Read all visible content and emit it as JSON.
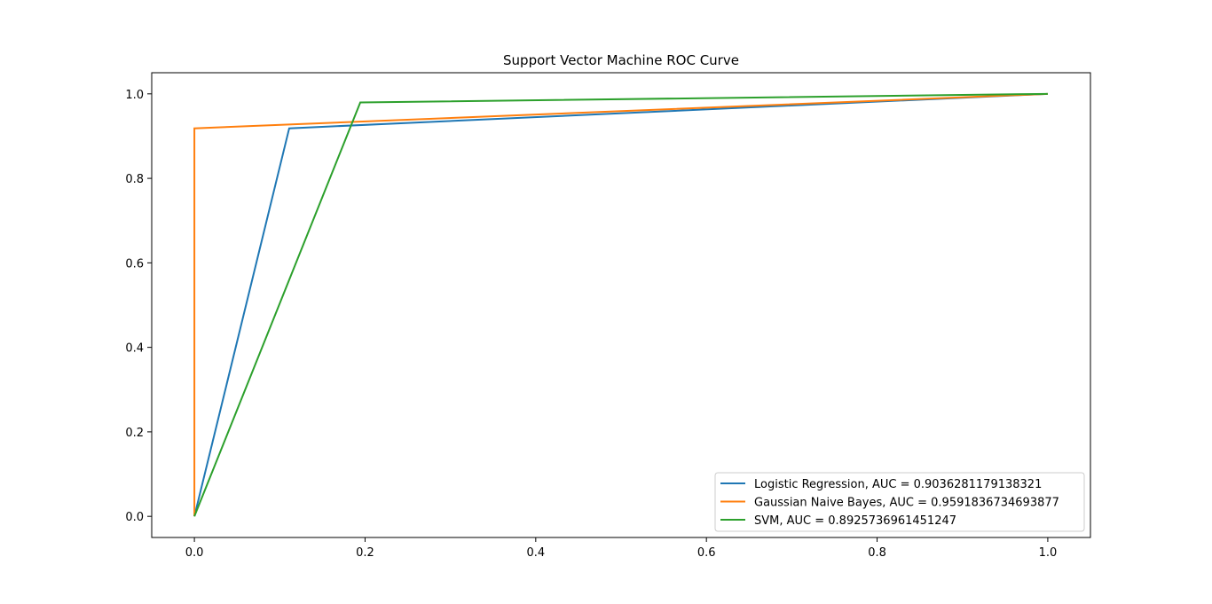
{
  "chart_data": {
    "type": "line",
    "title": "Support Vector Machine ROC Curve",
    "xlabel": "",
    "ylabel": "",
    "xlim": [
      -0.05,
      1.05
    ],
    "ylim": [
      -0.05,
      1.05
    ],
    "xticks": [
      0.0,
      0.2,
      0.4,
      0.6,
      0.8,
      1.0
    ],
    "yticks": [
      0.0,
      0.2,
      0.4,
      0.6,
      0.8,
      1.0
    ],
    "xtick_labels": [
      "0.0",
      "0.2",
      "0.4",
      "0.6",
      "0.8",
      "1.0"
    ],
    "ytick_labels": [
      "0.0",
      "0.2",
      "0.4",
      "0.6",
      "0.8",
      "1.0"
    ],
    "grid": false,
    "legend_position": "lower-right",
    "series": [
      {
        "name": "Logistic Regression, AUC = 0.9036281179138321",
        "color": "#1f77b4",
        "x": [
          0.0,
          0.1111,
          1.0
        ],
        "y": [
          0.0,
          0.9184,
          1.0
        ]
      },
      {
        "name": "Gaussian Naive Bayes, AUC = 0.9591836734693877",
        "color": "#ff7f0e",
        "x": [
          0.0,
          0.0,
          1.0
        ],
        "y": [
          0.0,
          0.9184,
          1.0
        ]
      },
      {
        "name": "SVM, AUC = 0.8925736961451247",
        "color": "#2ca02c",
        "x": [
          0.0,
          0.1944,
          1.0
        ],
        "y": [
          0.0,
          0.9796,
          1.0
        ]
      }
    ]
  }
}
